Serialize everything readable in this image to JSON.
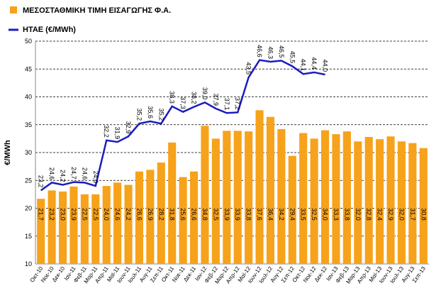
{
  "chart_data": {
    "type": "bar_line",
    "y_label": "€/MWh",
    "categories": [
      "Οκτ-10",
      "Νοε-10",
      "Δεκ-10",
      "Ιαν-11",
      "Φεβ-11",
      "Μαρ-11",
      "Απρ-11",
      "Μαϊ-11",
      "Ιουν-11",
      "Ιουλ-11",
      "Αυγ-11",
      "Σεπ-11",
      "Οκτ-11",
      "Νοε-11",
      "Δεκ-11",
      "Ιαν-12",
      "Φεβ-12",
      "Μαρ-12",
      "Απρ-12",
      "Μαϊ-12",
      "Ιουν-12",
      "Ιουλ-12",
      "Αυγ-12",
      "Σεπ-12",
      "Οκτ-12",
      "Νοε-12",
      "Δεκ-12",
      "Ιαν-13",
      "Φεβ-13",
      "Μαρ-13",
      "Απρ-13",
      "Μαϊ-13",
      "Ιουν-13",
      "Ιουλ-13",
      "Αυγ-13",
      "Σεπ-13"
    ],
    "series": [
      {
        "name": "ΜΕΣΟΣΤΑΘΜΙΚΗ ΤΙΜΗ ΕΙΣΑΓΩΓΗΣ Φ.Α.",
        "type": "bar",
        "color": "#f7a21b",
        "values": [
          21.7,
          23.2,
          23.0,
          23.9,
          22.5,
          22.5,
          24.0,
          24.6,
          24.2,
          26.6,
          26.9,
          28.2,
          31.8,
          25.6,
          26.6,
          34.8,
          32.5,
          33.9,
          33.9,
          33.8,
          37.6,
          36.4,
          34.2,
          29.4,
          33.5,
          32.5,
          34.0,
          33.3,
          33.8,
          32.0,
          32.8,
          32.4,
          32.9,
          32.0,
          31.7,
          30.8
        ],
        "value_labels": [
          "21,7",
          "23,2",
          "23,0",
          "23,9",
          "22,5",
          "22,5",
          "24,0",
          "24,6",
          "24,2",
          "26,6",
          "26,9",
          "28,2",
          "31,8",
          "25,6",
          "26,6",
          "34,8",
          "32,5",
          "33,9",
          "33,9",
          "33,8",
          "37,6",
          "36,4",
          "34,2",
          "29,4",
          "33,5",
          "32,5",
          "34,0",
          "33,3",
          "33,8",
          "32,0",
          "32,8",
          "32,4",
          "32,9",
          "32,0",
          "31,7",
          "30,8"
        ]
      },
      {
        "name": "ΗΤΑΕ (€/MWh)",
        "type": "line",
        "color": "#1c1cc0",
        "values": [
          23.2,
          24.6,
          24.2,
          24.7,
          24.6,
          24.0,
          32.2,
          31.9,
          32.9,
          35.2,
          35.6,
          35.2,
          38.3,
          37.3,
          38.2,
          39.0,
          37.9,
          37.1,
          37.2,
          43.5,
          46.6,
          46.3,
          46.5,
          45.5,
          44.1,
          44.4,
          44.0,
          null,
          null,
          null,
          null,
          null,
          null,
          null,
          null,
          null
        ],
        "value_labels": [
          "23,2",
          "24,6",
          "24,2",
          "24,7",
          "24,6",
          "24,0",
          "32,2",
          "31,9",
          "32,9",
          "35,2",
          "35,6",
          "35,2",
          "38,3",
          "37,3",
          "38,2",
          "39,0",
          "37,9",
          "37,1",
          "37,2",
          "43,5",
          "46,6",
          "46,3",
          "46,5",
          "45,5",
          "44,1",
          "44,4",
          "44,0",
          null,
          null,
          null,
          null,
          null,
          null,
          null,
          null,
          null
        ]
      }
    ],
    "ylim": [
      10,
      50
    ],
    "yticks": [
      10,
      15,
      20,
      25,
      30,
      35,
      40,
      45,
      50
    ],
    "grid": true
  }
}
